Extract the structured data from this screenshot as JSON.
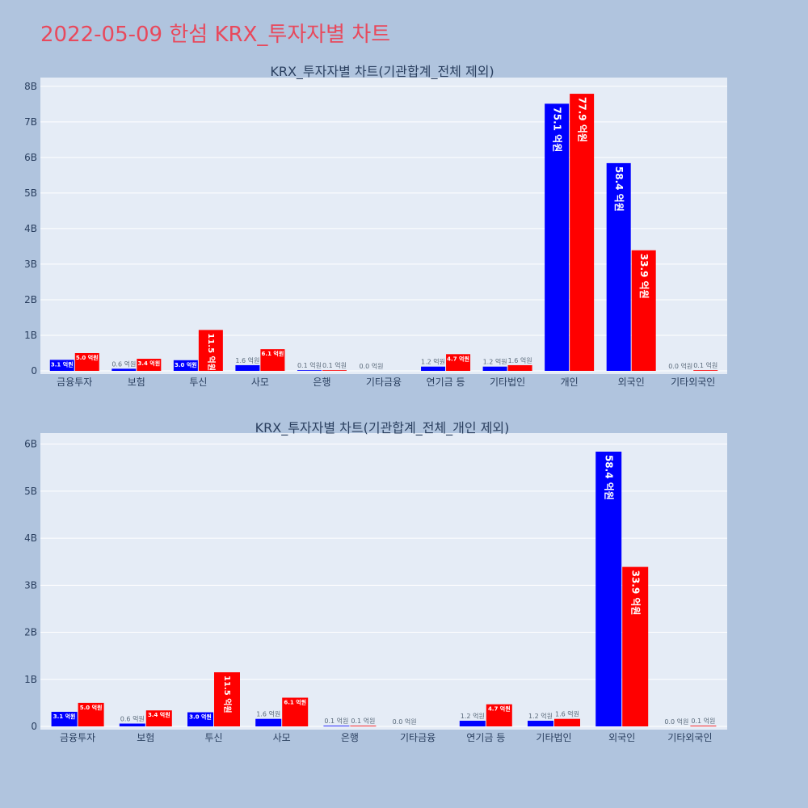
{
  "page": {
    "title": "2022-05-09 한섬 KRX_투자자별 차트",
    "background": "#b0c4de",
    "plot_background": "#e5ecf6",
    "buy_color": "#0000ff",
    "sell_color": "#ff0000"
  },
  "chart_data": [
    {
      "type": "bar",
      "title": "KRX_투자자별 차트(기관합계_전체 제외)",
      "xlabel": "",
      "ylabel": "",
      "ylim": [
        0,
        8.2
      ],
      "y_ticks": [
        0,
        1,
        2,
        3,
        4,
        5,
        6,
        7,
        8
      ],
      "y_tick_labels": [
        "0",
        "1B",
        "2B",
        "3B",
        "4B",
        "5B",
        "6B",
        "7B",
        "8B"
      ],
      "grid": true,
      "categories": [
        "금융투자",
        "보험",
        "투신",
        "사모",
        "은행",
        "기타금융",
        "연기금 등",
        "기타법인",
        "개인",
        "외국인",
        "기타외국인"
      ],
      "series": [
        {
          "color": "#0000ff",
          "values": [
            0.31,
            0.06,
            0.3,
            0.16,
            0.01,
            0.0,
            0.12,
            0.12,
            7.51,
            5.84,
            0.0
          ],
          "labels": [
            "3.1 억원",
            "0.6 억원",
            "3.0 억원",
            "1.6 억원",
            "0.1 억원",
            "0.0 억원",
            "1.2 억원",
            "1.2 억원",
            "75.1 억원",
            "58.4 억원",
            "0.0 억원"
          ]
        },
        {
          "color": "#ff0000",
          "values": [
            0.5,
            0.34,
            1.15,
            0.61,
            0.01,
            0.0,
            0.47,
            0.16,
            7.79,
            3.39,
            0.01
          ],
          "labels": [
            "5.0 억원",
            "3.4 억원",
            "11.5 억원",
            "6.1 억원",
            "0.1 억원",
            "",
            "4.7 억원",
            "1.6 억원",
            "77.9 억원",
            "33.9 억원",
            "0.1 억원"
          ]
        }
      ]
    },
    {
      "type": "bar",
      "title": "KRX_투자자별 차트(기관합계_전체_개인 제외)",
      "xlabel": "",
      "ylabel": "",
      "ylim": [
        0,
        6.2
      ],
      "y_ticks": [
        0,
        1,
        2,
        3,
        4,
        5,
        6
      ],
      "y_tick_labels": [
        "0",
        "1B",
        "2B",
        "3B",
        "4B",
        "5B",
        "6B"
      ],
      "grid": true,
      "categories": [
        "금융투자",
        "보험",
        "투신",
        "사모",
        "은행",
        "기타금융",
        "연기금 등",
        "기타법인",
        "외국인",
        "기타외국인"
      ],
      "series": [
        {
          "color": "#0000ff",
          "values": [
            0.31,
            0.06,
            0.3,
            0.16,
            0.01,
            0.0,
            0.12,
            0.12,
            5.84,
            0.0
          ],
          "labels": [
            "3.1 억원",
            "0.6 억원",
            "3.0 억원",
            "1.6 억원",
            "0.1 억원",
            "0.0 억원",
            "1.2 억원",
            "1.2 억원",
            "58.4 억원",
            "0.0 억원"
          ]
        },
        {
          "color": "#ff0000",
          "values": [
            0.5,
            0.34,
            1.15,
            0.61,
            0.01,
            0.0,
            0.47,
            0.16,
            3.39,
            0.01
          ],
          "labels": [
            "5.0 억원",
            "3.4 억원",
            "11.5 억원",
            "6.1 억원",
            "0.1 억원",
            "",
            "4.7 억원",
            "1.6 억원",
            "33.9 억원",
            "0.1 억원"
          ]
        }
      ]
    }
  ]
}
